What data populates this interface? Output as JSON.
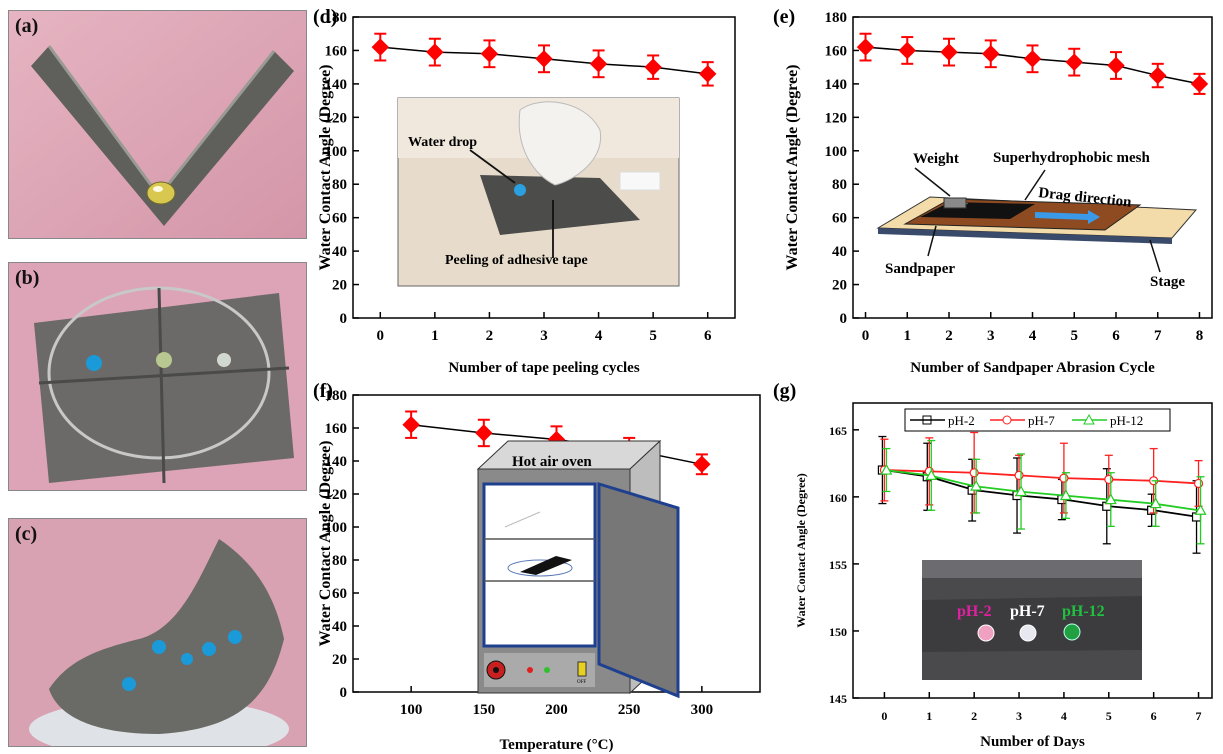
{
  "panels": {
    "a": "(a)",
    "b": "(b)",
    "c": "(c)",
    "d": "(d)",
    "e": "(e)",
    "f": "(f)",
    "g": "(g)"
  },
  "colors": {
    "marker_red": "#ff0000",
    "line_black": "#000000",
    "ph2": "#000000",
    "ph7": "#ff2020",
    "ph12": "#22cc22",
    "photo_pink": "#e0aab8",
    "mesh_gray": "#5a5a58",
    "oven_gray": "#8a8a8a",
    "oven_blue": "#1f3f8f",
    "sandpaper_brown": "#9a4a1a",
    "stage_beige": "#f0d8a0",
    "arrow_blue": "#3a9ae8"
  },
  "insets": {
    "d": {
      "water_drop": "Water drop",
      "peeling": "Peeling of adhesive tape"
    },
    "e": {
      "weight": "Weight",
      "mesh": "Superhydrophobic mesh",
      "drag": "Drag direction",
      "sandpaper": "Sandpaper",
      "stage": "Stage"
    },
    "f": {
      "oven": "Hot air oven",
      "off": "OFF"
    },
    "g": {
      "ph2": "pH-2",
      "ph7": "pH-7",
      "ph12": "pH-12"
    }
  },
  "chart_data": [
    {
      "panel": "d",
      "type": "line",
      "xlabel": "Number of tape peeling cycles",
      "ylabel": "Water Contact Angle (Degree)",
      "xlim": [
        -0.5,
        6.5
      ],
      "ylim": [
        0,
        180
      ],
      "xticks": [
        0,
        1,
        2,
        3,
        4,
        5,
        6
      ],
      "yticks": [
        0,
        20,
        40,
        60,
        80,
        100,
        120,
        140,
        160,
        180
      ],
      "x": [
        0,
        1,
        2,
        3,
        4,
        5,
        6
      ],
      "y": [
        162,
        159,
        158,
        155,
        152,
        150,
        146
      ],
      "err": [
        8,
        8,
        8,
        8,
        8,
        7,
        7
      ]
    },
    {
      "panel": "e",
      "type": "line",
      "xlabel": "Number of Sandpaper Abrasion Cycle",
      "ylabel": "Water Contact Angle (Degree)",
      "xlim": [
        -0.3,
        8.3
      ],
      "ylim": [
        0,
        180
      ],
      "xticks": [
        0,
        1,
        2,
        3,
        4,
        5,
        6,
        7,
        8
      ],
      "yticks": [
        0,
        20,
        40,
        60,
        80,
        100,
        120,
        140,
        160,
        180
      ],
      "x": [
        0,
        1,
        2,
        3,
        4,
        5,
        6,
        7,
        8
      ],
      "y": [
        162,
        160,
        159,
        158,
        155,
        153,
        151,
        145,
        140
      ],
      "err": [
        8,
        8,
        8,
        8,
        8,
        8,
        8,
        7,
        6
      ]
    },
    {
      "panel": "f",
      "type": "line",
      "xlabel": "Temperature (°C)",
      "ylabel": "Water Contact Angle (Degree)",
      "xlim": [
        60,
        340
      ],
      "ylim": [
        0,
        180
      ],
      "xticks": [
        100,
        150,
        200,
        250,
        300
      ],
      "yticks": [
        0,
        20,
        40,
        60,
        80,
        100,
        120,
        140,
        160,
        180
      ],
      "x": [
        100,
        150,
        200,
        250,
        300
      ],
      "y": [
        162,
        157,
        153,
        147,
        138
      ],
      "err": [
        8,
        8,
        8,
        7,
        6
      ]
    },
    {
      "panel": "g",
      "type": "line",
      "xlabel": "Number of Days",
      "ylabel": "Water Contact Angle (Degree)",
      "xlim": [
        -0.7,
        7.3
      ],
      "ylim": [
        145,
        167
      ],
      "xticks": [
        0,
        1,
        2,
        3,
        4,
        5,
        6,
        7
      ],
      "yticks": [
        145,
        150,
        155,
        160,
        165
      ],
      "x": [
        0,
        1,
        2,
        3,
        4,
        5,
        6,
        7
      ],
      "series": [
        {
          "name": "pH-2",
          "y": [
            162,
            161.5,
            160.5,
            160.1,
            159.8,
            159.3,
            159.0,
            158.5
          ],
          "err": [
            2.5,
            2.5,
            2.3,
            2.8,
            1.5,
            2.8,
            1.2,
            2.7
          ]
        },
        {
          "name": "pH-7",
          "y": [
            162,
            161.9,
            161.8,
            161.6,
            161.4,
            161.3,
            161.2,
            161.0
          ],
          "err": [
            2.3,
            2.5,
            3.0,
            1.5,
            2.6,
            1.8,
            2.4,
            1.7
          ]
        },
        {
          "name": "pH-12",
          "y": [
            162,
            161.6,
            160.8,
            160.4,
            160.1,
            159.8,
            159.5,
            159.0
          ],
          "err": [
            1.6,
            2.6,
            2.0,
            2.8,
            1.7,
            2.0,
            1.7,
            2.5
          ]
        }
      ]
    }
  ]
}
